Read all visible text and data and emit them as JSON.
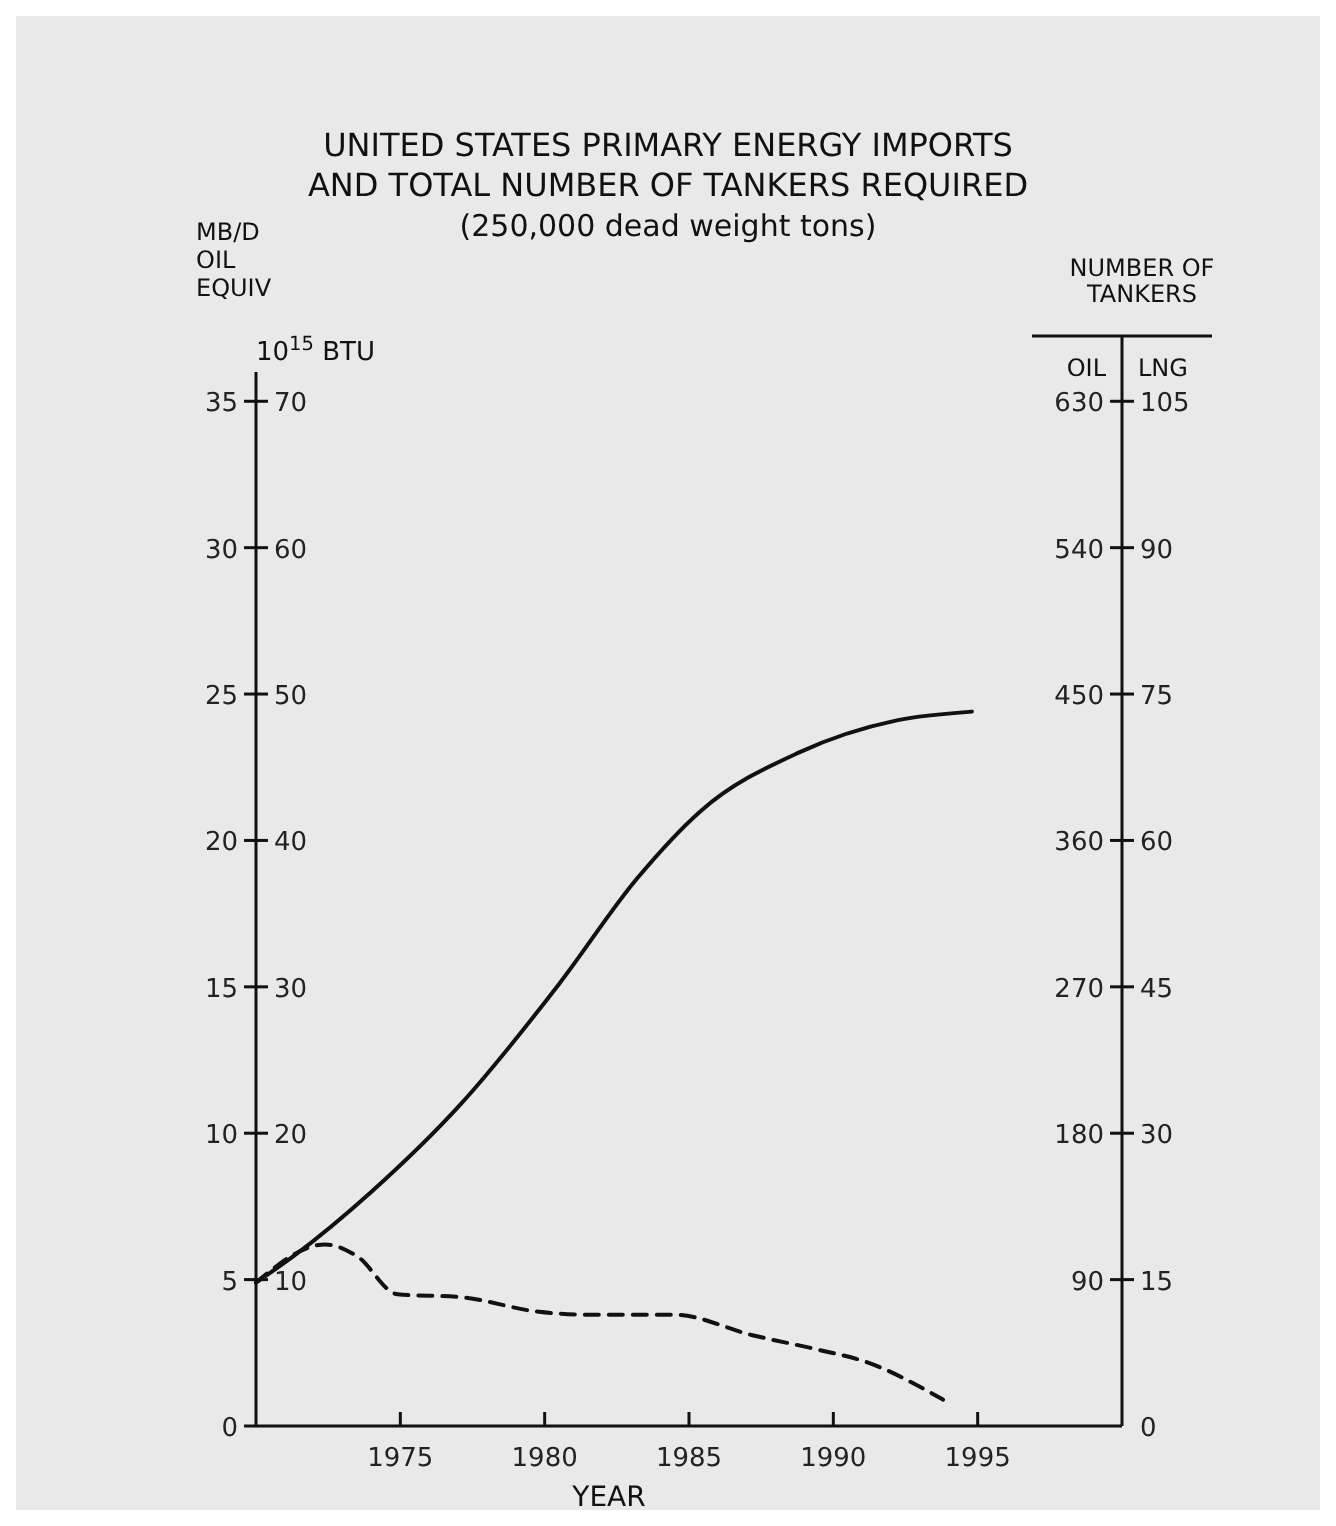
{
  "chart_data": {
    "type": "line",
    "title": "UNITED STATES PRIMARY ENERGY IMPORTS\nAND TOTAL NUMBER OF TANKERS REQUIRED",
    "subtitle": "(250,000 dead weight tons)",
    "xlabel": "YEAR",
    "ylabel": "MB/D\nOIL\nEQUIV",
    "y2label": "10$^{15}$ BTU",
    "y3label": "OIL",
    "annotations": [
      "NUMBER OF TANKERS",
      "LNG",
      "0",
      "15",
      "30",
      "45",
      "60",
      "75",
      "90",
      "105"
    ],
    "xlim": [
      1970,
      2000
    ],
    "xticks": [
      1975,
      1980,
      1985,
      1990,
      1995
    ],
    "ylim": [
      0,
      36
    ],
    "yticks": [
      0,
      5,
      10,
      15,
      20,
      25,
      30,
      35
    ],
    "y2lim": [
      0,
      72
    ],
    "y2ticks": [
      10,
      20,
      30,
      40,
      50,
      60,
      70
    ],
    "y3lim": [
      0,
      648
    ],
    "y3ticks": [
      90,
      180,
      270,
      360,
      450,
      540,
      630
    ],
    "grid": false,
    "marker": "none",
    "series": [
      {
        "color": "#111111",
        "line_style": "solid",
        "x": [
          1970,
          1971.3,
          1974,
          1977.1,
          1980.5,
          1983.2,
          1985.4,
          1988.8,
          1992.2,
          1994.8
        ],
        "values": [
          4.9,
          5.8,
          8.0,
          11.0,
          15.1,
          18.7,
          21.0,
          23.0,
          24.1,
          24.4
        ]
      },
      {
        "color": "#111111",
        "line_style": "dashed",
        "x": [
          1970,
          1972.4,
          1973.5,
          1974.9,
          1977.1,
          1979.8,
          1981.6,
          1984.5,
          1987.2,
          1989.5,
          1991.1,
          1993.8
        ],
        "values": [
          4.9,
          6.2,
          5.8,
          4.5,
          4.4,
          3.9,
          3.8,
          3.8,
          3.1,
          2.6,
          2.2,
          0.9
        ]
      }
    ]
  }
}
